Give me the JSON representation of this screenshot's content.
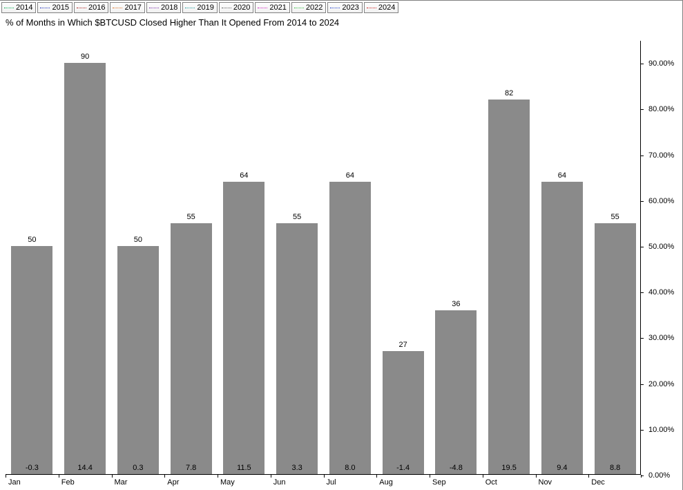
{
  "legend": {
    "items": [
      {
        "label": "2014",
        "color": "#00b050"
      },
      {
        "label": "2015",
        "color": "#2030c0"
      },
      {
        "label": "2016",
        "color": "#b02020"
      },
      {
        "label": "2017",
        "color": "#e07020"
      },
      {
        "label": "2018",
        "color": "#8030b0"
      },
      {
        "label": "2019",
        "color": "#20a0a0"
      },
      {
        "label": "2020",
        "color": "#606060"
      },
      {
        "label": "2021",
        "color": "#d020c0"
      },
      {
        "label": "2022",
        "color": "#30c040"
      },
      {
        "label": "2023",
        "color": "#2040d0"
      },
      {
        "label": "2024",
        "color": "#d02020"
      }
    ]
  },
  "chart": {
    "title": "% of Months in Which $BTCUSD Closed Higher Than It Opened From 2014 to 2024",
    "type": "bar",
    "y_axis": {
      "min": 0,
      "max": 95,
      "ticks": [
        0,
        10,
        20,
        30,
        40,
        50,
        60,
        70,
        80,
        90
      ],
      "tick_labels": [
        "0.00%",
        "10.00%",
        "20.00%",
        "30.00%",
        "40.00%",
        "50.00%",
        "60.00%",
        "70.00%",
        "80.00%",
        "90.00%"
      ],
      "label_fontsize": 11
    },
    "categories": [
      "Jan",
      "Feb",
      "Mar",
      "Apr",
      "May",
      "Jun",
      "Jul",
      "Aug",
      "Sep",
      "Oct",
      "Nov",
      "Dec"
    ],
    "values": [
      50,
      90,
      50,
      55,
      64,
      55,
      64,
      27,
      36,
      82,
      64,
      55
    ],
    "secondary": [
      "-0.3",
      "14.4",
      "0.3",
      "7.8",
      "11.5",
      "3.3",
      "8.0",
      "-1.4",
      "-4.8",
      "19.5",
      "9.4",
      "8.8"
    ],
    "bar_color": "#8a8a8a",
    "background_color": "#ffffff",
    "axis_color": "#000000",
    "bar_width_ratio": 0.78,
    "value_label_fontsize": 11
  }
}
